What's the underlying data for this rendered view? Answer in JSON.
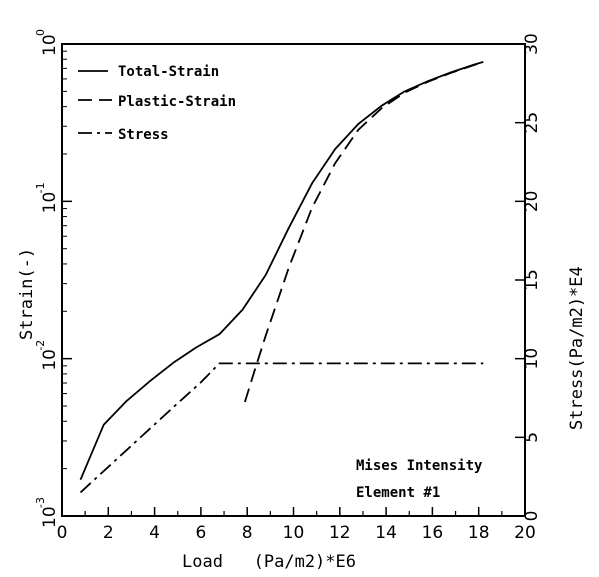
{
  "chart_data": {
    "type": "line",
    "xlabel": "Load   (Pa/m2)*E6",
    "ylabel_left": "Strain(-)",
    "ylabel_right": "Stress(Pa/m2)*E4",
    "xlim": [
      0,
      20
    ],
    "ylim_left": [
      0.001,
      1
    ],
    "ylim_right": [
      0,
      30
    ],
    "left_scale": "log",
    "x_ticks": [
      "0",
      "2",
      "4",
      "6",
      "8",
      "10",
      "12",
      "14",
      "16",
      "18",
      "20"
    ],
    "left_ticks": [
      {
        "base": "10",
        "exp": "0",
        "value": 1
      },
      {
        "base": "10",
        "exp": "-1",
        "value": 0.1
      },
      {
        "base": "10",
        "exp": "-2",
        "value": 0.01
      },
      {
        "base": "10",
        "exp": "-3",
        "value": 0.001
      }
    ],
    "right_ticks": [
      "0",
      "5",
      "10",
      "15",
      "20",
      "25",
      "30"
    ],
    "legend_placement": "top-left",
    "grid": false,
    "series": [
      {
        "name": "Total-Strain",
        "axis": "left",
        "style": "solid",
        "x": [
          0.8,
          1.8,
          2.8,
          3.8,
          4.8,
          5.8,
          6.8,
          7.8,
          8.8,
          9.8,
          10.8,
          11.8,
          12.8,
          13.8,
          14.8,
          15.8,
          16.8,
          17.8,
          18.2
        ],
        "y": [
          0.0017,
          0.0038,
          0.0054,
          0.0072,
          0.0094,
          0.0118,
          0.0143,
          0.0205,
          0.034,
          0.068,
          0.13,
          0.215,
          0.31,
          0.405,
          0.5,
          0.58,
          0.66,
          0.74,
          0.77
        ]
      },
      {
        "name": "Plastic-Strain",
        "axis": "left",
        "style": "dashed",
        "x": [
          7.9,
          8.3,
          8.8,
          9.8,
          10.8,
          11.8,
          12.8,
          13.8,
          14.8,
          15.8,
          16.8,
          17.8,
          18.2
        ],
        "y": [
          0.0053,
          0.0082,
          0.014,
          0.038,
          0.091,
          0.175,
          0.285,
          0.39,
          0.49,
          0.575,
          0.655,
          0.735,
          0.77
        ]
      },
      {
        "name": "Stress",
        "axis": "right",
        "style": "dashdot",
        "x": [
          0.8,
          2.8,
          4.8,
          6.0,
          6.8,
          18.2
        ],
        "y": [
          1.5,
          4.2,
          6.9,
          8.5,
          9.7,
          9.7
        ]
      }
    ],
    "annotations": [
      "Mises Intensity",
      "Element #1"
    ]
  }
}
